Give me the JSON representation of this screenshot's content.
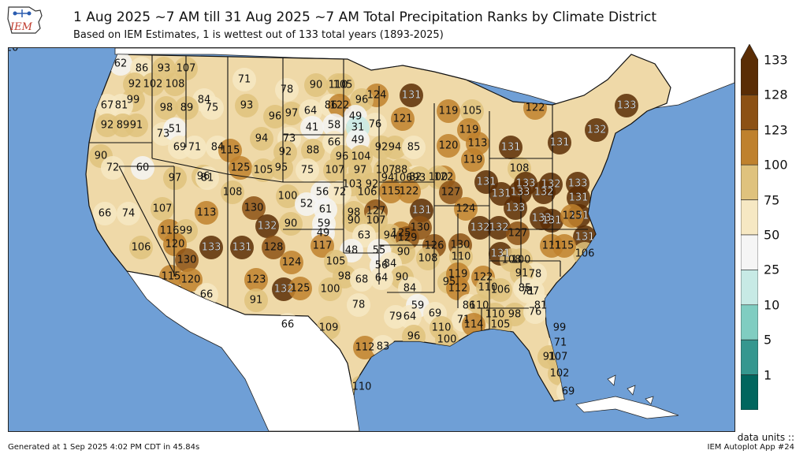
{
  "header": {
    "logo_text": "IEM",
    "title": "1 Aug 2025 ~7 AM till 31 Aug 2025 ~7 AM Total Precipitation Ranks by Climate District",
    "subtitle": "Based on IEM Estimates, 1 is wettest out of 133 total years (1893-2025)"
  },
  "footer": {
    "generated": "Generated at 1 Sep 2025 4:02 PM CDT in 45.84s",
    "app": "IEM Autoplot App #24",
    "units": "data units ::"
  },
  "colors": {
    "ocean": "#6f9fd6",
    "land_other": "#ffffff",
    "border": "#111111"
  },
  "colorbar": {
    "ticks": [
      "133",
      "128",
      "123",
      "100",
      "75",
      "50",
      "25",
      "10",
      "5",
      "1"
    ],
    "bins": [
      {
        "color": "#5a2d05"
      },
      {
        "color": "#8c5114"
      },
      {
        "color": "#bf812d"
      },
      {
        "color": "#dfc27d"
      },
      {
        "color": "#f6e8c3"
      },
      {
        "color": "#f5f5f5"
      },
      {
        "color": "#c7eae5"
      },
      {
        "color": "#80cdc1"
      },
      {
        "color": "#35978f"
      },
      {
        "color": "#01665e"
      }
    ]
  },
  "district_ranks": [
    "62",
    "86",
    "93",
    "107",
    "71",
    "92",
    "102",
    "108",
    "78",
    "90",
    "110",
    "105",
    "99",
    "84",
    "124",
    "131",
    "67",
    "81",
    "98",
    "89",
    "75",
    "93",
    "96",
    "97",
    "86",
    "122",
    "96",
    "64",
    "49",
    "76",
    "121",
    "119",
    "105",
    "92",
    "89",
    "91",
    "73",
    "51",
    "69",
    "71",
    "84",
    "41",
    "58",
    "31",
    "119",
    "131",
    "122",
    "133",
    "115",
    "94",
    "73",
    "92",
    "88",
    "66",
    "49",
    "96",
    "104",
    "92",
    "94",
    "85",
    "120",
    "113",
    "108",
    "132",
    "90",
    "72",
    "60",
    "97",
    "125",
    "105",
    "95",
    "75",
    "107",
    "97",
    "107",
    "88",
    "82",
    "122",
    "119",
    "131",
    "96",
    "81",
    "103",
    "92",
    "94",
    "106",
    "93",
    "100",
    "131",
    "133",
    "132",
    "133",
    "66",
    "74",
    "107",
    "108",
    "130",
    "100",
    "56",
    "72",
    "106",
    "115",
    "122",
    "127",
    "131",
    "133",
    "132",
    "131",
    "113",
    "52",
    "61",
    "98",
    "127",
    "131",
    "124",
    "133",
    "131",
    "133",
    "116",
    "99",
    "132",
    "90",
    "59",
    "90",
    "107",
    "125",
    "130",
    "132",
    "132",
    "127",
    "131",
    "125",
    "131",
    "106",
    "120",
    "133",
    "131",
    "128",
    "49",
    "63",
    "94",
    "129",
    "126",
    "130",
    "131",
    "106",
    "130",
    "117",
    "48",
    "55",
    "90",
    "108",
    "110",
    "111",
    "115",
    "115",
    "120",
    "123",
    "124",
    "105",
    "56",
    "84",
    "90",
    "95",
    "119",
    "122",
    "108",
    "100",
    "78",
    "91",
    "66",
    "132",
    "98",
    "68",
    "64",
    "84",
    "112",
    "110",
    "106",
    "85",
    "71",
    "87",
    "91",
    "125",
    "100",
    "78",
    "59",
    "69",
    "86",
    "110",
    "110",
    "98",
    "76",
    "81",
    "66",
    "109",
    "79",
    "64",
    "71",
    "110",
    "114",
    "105",
    "99",
    "96",
    "100",
    "112",
    "83",
    "71",
    "107",
    "91",
    "102",
    "110",
    "69",
    "120"
  ]
}
